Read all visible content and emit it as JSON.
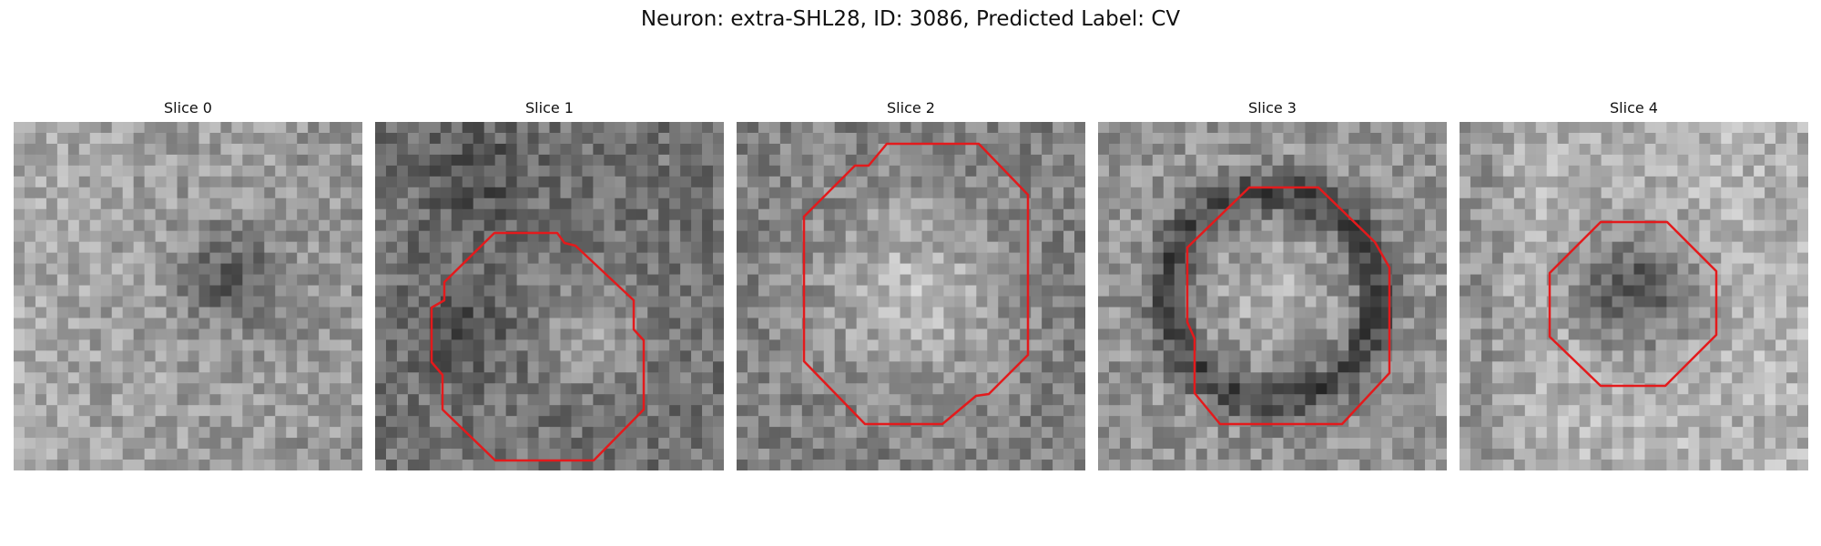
{
  "figure": {
    "title": "Neuron: extra-SHL28, ID: 3086, Predicted Label: CV"
  },
  "contour_color": "#e31a1c",
  "slices": [
    {
      "title": "Slice 0",
      "has_contour": false,
      "seed": 11,
      "center_tone": "dark"
    },
    {
      "title": "Slice 1",
      "has_contour": true,
      "seed": 23,
      "center_tone": "mixed"
    },
    {
      "title": "Slice 2",
      "has_contour": true,
      "seed": 37,
      "center_tone": "light"
    },
    {
      "title": "Slice 3",
      "has_contour": true,
      "seed": 41,
      "center_tone": "light-ring"
    },
    {
      "title": "Slice 4",
      "has_contour": true,
      "seed": 53,
      "center_tone": "dark"
    }
  ]
}
